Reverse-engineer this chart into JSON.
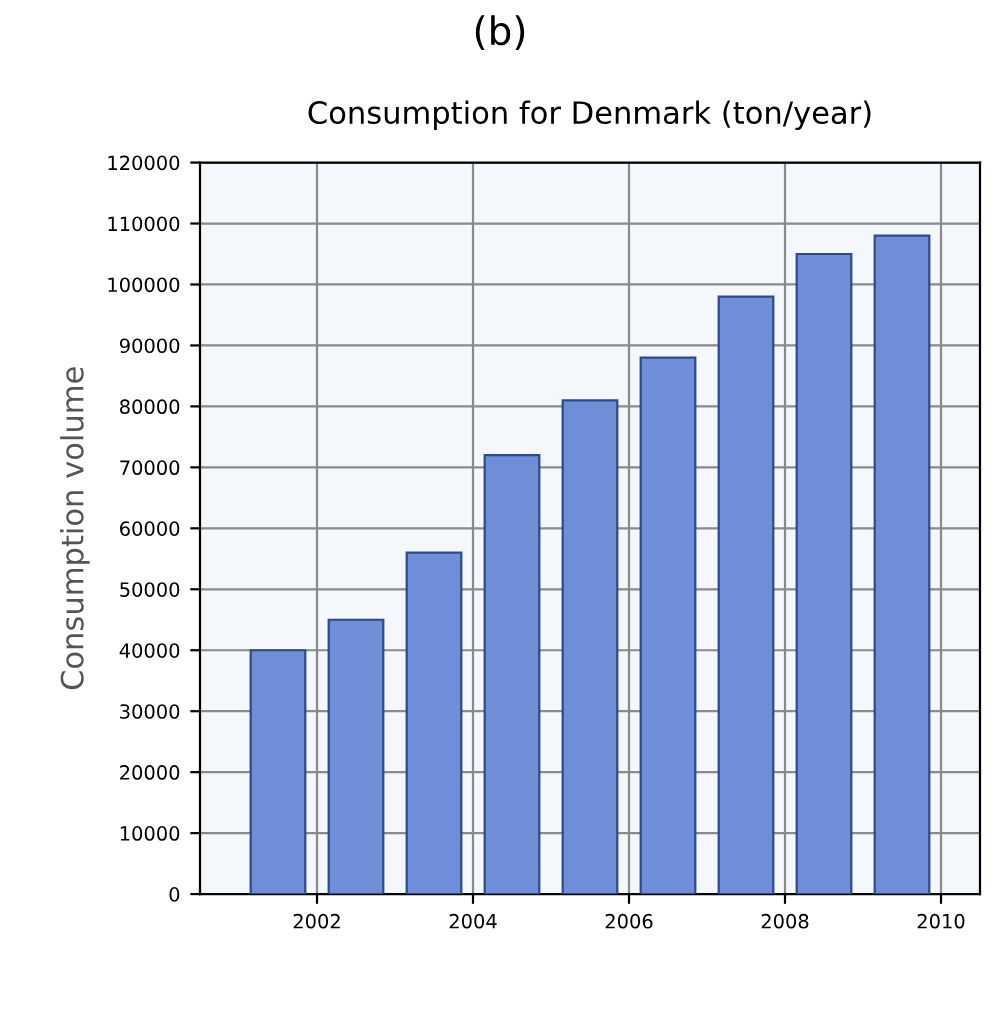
{
  "chart_data": {
    "type": "bar",
    "title": "Consumption for Denmark (ton/year)",
    "ylabel": "Consumption volume",
    "annotations": [
      "(b)"
    ],
    "x": [
      2001.5,
      2002.5,
      2003.5,
      2004.5,
      2005.5,
      2006.5,
      2007.5,
      2008.5,
      2009.5
    ],
    "values": [
      40000,
      45000,
      56000,
      72000,
      81000,
      88000,
      98000,
      105000,
      108000
    ],
    "color": "#6f8ed8",
    "xlim": [
      2000.5,
      2010.5
    ],
    "xticks": [
      2002,
      2004,
      2006,
      2008,
      2010
    ],
    "ylim": [
      0,
      120000
    ],
    "yticks": [
      0,
      10000,
      20000,
      30000,
      40000,
      50000,
      60000,
      70000,
      80000,
      90000,
      100000,
      110000,
      120000
    ],
    "grid": true
  }
}
